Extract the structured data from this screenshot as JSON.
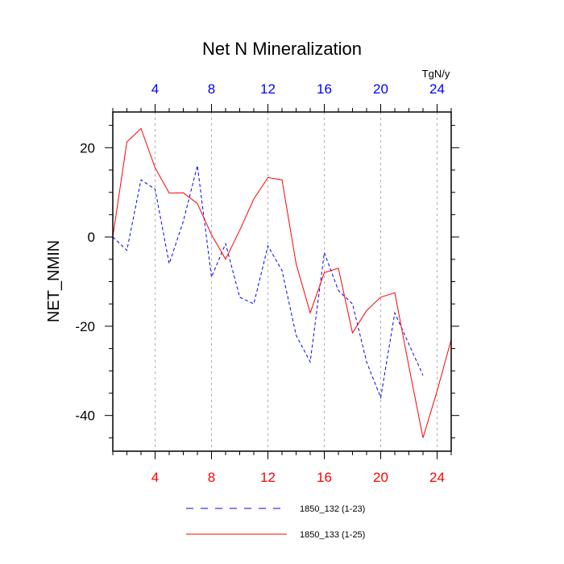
{
  "chart_data": {
    "type": "line",
    "title": "Net N Mineralization",
    "ylabel": "NET_NMIN",
    "units": "TgN/y",
    "xlim": [
      1,
      25
    ],
    "ylim": [
      -48,
      28
    ],
    "x_ticks": [
      4,
      8,
      12,
      16,
      20,
      24
    ],
    "x_tick_labels": [
      "4",
      "8",
      "12",
      "16",
      "20",
      "24"
    ],
    "y_ticks": [
      20,
      0,
      -20,
      -40
    ],
    "y_tick_labels": [
      "20",
      "0",
      "-20",
      "-40"
    ],
    "grid": "vertical dashed at major x ticks",
    "legend_position": "bottom",
    "bottom_axis_color": "#ff0000",
    "top_axis_color": "#0000ff",
    "series": [
      {
        "name": "1850_132 (1-23)",
        "color": "#0000ff",
        "style": "dashed",
        "x": [
          1,
          2,
          3,
          4,
          5,
          6,
          7,
          8,
          9,
          10,
          11,
          12,
          13,
          14,
          15,
          16,
          17,
          18,
          19,
          20,
          21,
          22,
          23
        ],
        "values": [
          0,
          -3,
          12.8,
          10.7,
          -6,
          3.5,
          16,
          -9,
          -1.5,
          -13.5,
          -15,
          -2,
          -7.5,
          -22,
          -28,
          -3.5,
          -12,
          -15,
          -28,
          -36,
          -17,
          -24,
          -31
        ]
      },
      {
        "name": "1850_133 (1-25)",
        "color": "#ff0000",
        "style": "solid",
        "x": [
          1,
          2,
          3,
          4,
          5,
          6,
          7,
          8,
          9,
          10,
          11,
          12,
          13,
          14,
          15,
          16,
          17,
          18,
          19,
          20,
          21,
          22,
          23,
          24,
          25
        ],
        "values": [
          0,
          21.3,
          24.3,
          15.5,
          9.8,
          9.9,
          7.5,
          0.5,
          -5,
          1.5,
          8.5,
          13.3,
          12.8,
          -6,
          -17,
          -8,
          -7,
          -21.5,
          -16.5,
          -13.5,
          -12.5,
          -29,
          -45,
          -34.5,
          -23
        ]
      }
    ]
  }
}
